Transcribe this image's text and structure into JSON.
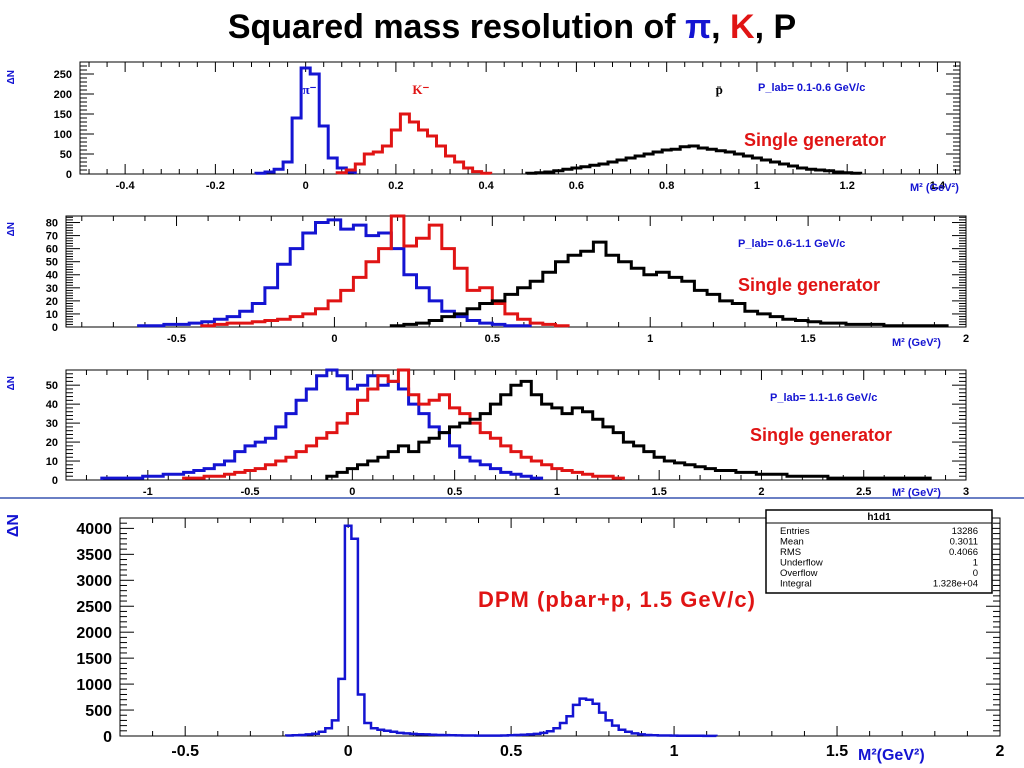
{
  "title": {
    "prefix": "Squared mass resolution of ",
    "pi": "π",
    "sep1": ", ",
    "k": "K",
    "sep2": ", ",
    "p": "P"
  },
  "colors": {
    "pion": "#1414d2",
    "kaon": "#e01414",
    "proton": "#000000",
    "axis": "#000000",
    "label_blue": "#1414d2",
    "label_red": "#e01414",
    "separator": "#6a7fc4"
  },
  "chart_data": [
    {
      "type": "line",
      "style": "histogram",
      "ylabel": "ΔN",
      "xlabel": "M² (GeV²)",
      "xlim": [
        -0.5,
        1.45
      ],
      "ylim": [
        0,
        280
      ],
      "x_ticks": [
        -0.4,
        -0.2,
        0,
        0.2,
        0.4,
        0.6,
        0.8,
        1,
        1.2,
        1.4
      ],
      "x_tick_labels": [
        "-0.4",
        "-0.2",
        "0",
        "0.2",
        "0.4",
        "0.6",
        "0.8",
        "1",
        "1.2",
        "1.4"
      ],
      "y_ticks": [
        0,
        50,
        100,
        150,
        200,
        250
      ],
      "y_tick_labels": [
        "0",
        "50",
        "100",
        "150",
        "200",
        "250"
      ],
      "series_labels": [
        {
          "text": "π⁻",
          "x": -0.08,
          "y": 205,
          "series": "pion"
        },
        {
          "text": "K⁻",
          "x": 0.2,
          "y": 205,
          "series": "kaon"
        },
        {
          "text": "p̄",
          "x": 0.85,
          "y": 205,
          "series": "proton"
        }
      ],
      "annotations": [
        "P_lab= 0.1-0.6 GeV/c",
        "Single generator"
      ],
      "series": [
        {
          "key": "pion",
          "binwidth": 0.02,
          "x": [
            -0.1,
            -0.08,
            -0.06,
            -0.04,
            -0.02,
            0,
            0.02,
            0.04,
            0.06,
            0.08,
            0.1
          ],
          "values": [
            2,
            5,
            12,
            30,
            140,
            265,
            250,
            120,
            40,
            15,
            5
          ]
        },
        {
          "key": "kaon",
          "binwidth": 0.02,
          "x": [
            0.08,
            0.1,
            0.12,
            0.14,
            0.16,
            0.18,
            0.2,
            0.22,
            0.24,
            0.26,
            0.28,
            0.3,
            0.32,
            0.34,
            0.36,
            0.38,
            0.4
          ],
          "values": [
            3,
            10,
            25,
            50,
            55,
            70,
            110,
            150,
            130,
            110,
            95,
            70,
            45,
            30,
            15,
            6,
            2
          ]
        },
        {
          "key": "proton",
          "binwidth": 0.02,
          "x": [
            0.5,
            0.52,
            0.54,
            0.56,
            0.58,
            0.6,
            0.62,
            0.64,
            0.66,
            0.68,
            0.7,
            0.72,
            0.74,
            0.76,
            0.78,
            0.8,
            0.82,
            0.84,
            0.86,
            0.88,
            0.9,
            0.92,
            0.94,
            0.96,
            0.98,
            1,
            1.02,
            1.04,
            1.06,
            1.08,
            1.1,
            1.12,
            1.14,
            1.16,
            1.18,
            1.2,
            1.22
          ],
          "values": [
            2,
            3,
            5,
            8,
            12,
            15,
            18,
            22,
            25,
            30,
            35,
            40,
            45,
            50,
            55,
            60,
            62,
            68,
            70,
            65,
            62,
            58,
            55,
            50,
            45,
            40,
            35,
            30,
            25,
            20,
            15,
            12,
            10,
            8,
            5,
            3,
            2
          ]
        }
      ]
    },
    {
      "type": "line",
      "style": "histogram",
      "ylabel": "ΔN",
      "xlabel": "M² (GeV²)",
      "xlim": [
        -0.85,
        2.0
      ],
      "ylim": [
        0,
        85
      ],
      "x_ticks": [
        -0.5,
        0,
        0.5,
        1,
        1.5,
        2
      ],
      "x_tick_labels": [
        "-0.5",
        "0",
        "0.5",
        "1",
        "1.5",
        "2"
      ],
      "y_ticks": [
        0,
        10,
        20,
        30,
        40,
        50,
        60,
        70,
        80
      ],
      "y_tick_labels": [
        "0",
        "10",
        "20",
        "30",
        "40",
        "50",
        "60",
        "70",
        "80"
      ],
      "series_labels": [],
      "annotations": [
        "P_lab= 0.6-1.1 GeV/c",
        "Single generator"
      ],
      "series": [
        {
          "key": "pion",
          "binwidth": 0.04,
          "x": [
            -0.6,
            -0.56,
            -0.52,
            -0.48,
            -0.44,
            -0.4,
            -0.36,
            -0.32,
            -0.28,
            -0.24,
            -0.2,
            -0.16,
            -0.12,
            -0.08,
            -0.04,
            0,
            0.04,
            0.08,
            0.12,
            0.16,
            0.2,
            0.24,
            0.28,
            0.32,
            0.36,
            0.4,
            0.44,
            0.48,
            0.52,
            0.56,
            0.6
          ],
          "values": [
            1,
            1,
            2,
            2,
            3,
            4,
            6,
            8,
            12,
            18,
            30,
            48,
            60,
            72,
            80,
            82,
            75,
            78,
            70,
            72,
            60,
            40,
            30,
            20,
            12,
            8,
            5,
            3,
            2,
            1,
            1
          ]
        },
        {
          "key": "kaon",
          "binwidth": 0.04,
          "x": [
            -0.4,
            -0.36,
            -0.32,
            -0.28,
            -0.24,
            -0.2,
            -0.16,
            -0.12,
            -0.08,
            -0.04,
            0,
            0.04,
            0.08,
            0.12,
            0.16,
            0.2,
            0.24,
            0.28,
            0.32,
            0.36,
            0.4,
            0.44,
            0.48,
            0.52,
            0.56,
            0.6,
            0.64,
            0.68,
            0.72
          ],
          "values": [
            1,
            2,
            3,
            3,
            4,
            5,
            6,
            8,
            10,
            14,
            20,
            28,
            38,
            50,
            60,
            85,
            62,
            68,
            78,
            60,
            45,
            28,
            30,
            18,
            10,
            6,
            3,
            2,
            1
          ]
        },
        {
          "key": "proton",
          "binwidth": 0.04,
          "x": [
            0.2,
            0.24,
            0.28,
            0.32,
            0.36,
            0.4,
            0.44,
            0.48,
            0.52,
            0.56,
            0.6,
            0.64,
            0.68,
            0.72,
            0.76,
            0.8,
            0.84,
            0.88,
            0.92,
            0.96,
            1.0,
            1.04,
            1.08,
            1.12,
            1.16,
            1.2,
            1.24,
            1.28,
            1.32,
            1.36,
            1.4,
            1.44,
            1.48,
            1.52,
            1.56,
            1.6,
            1.64,
            1.68,
            1.72,
            1.76,
            1.8,
            1.84,
            1.88,
            1.92
          ],
          "values": [
            1,
            2,
            3,
            5,
            8,
            10,
            14,
            18,
            20,
            25,
            30,
            35,
            42,
            50,
            55,
            58,
            65,
            55,
            50,
            45,
            40,
            42,
            38,
            35,
            28,
            25,
            20,
            18,
            12,
            10,
            8,
            6,
            5,
            4,
            3,
            3,
            2,
            2,
            2,
            1,
            1,
            1,
            1,
            1
          ]
        }
      ]
    },
    {
      "type": "line",
      "style": "histogram",
      "ylabel": "ΔN",
      "xlabel": "M² (GeV²)",
      "xlim": [
        -1.4,
        3.0
      ],
      "ylim": [
        0,
        58
      ],
      "x_ticks": [
        -1,
        -0.5,
        0,
        0.5,
        1,
        1.5,
        2,
        2.5,
        3
      ],
      "x_tick_labels": [
        "-1",
        "-0.5",
        "0",
        "0.5",
        "1",
        "1.5",
        "2",
        "2.5",
        "3"
      ],
      "y_ticks": [
        0,
        10,
        20,
        30,
        40,
        50
      ],
      "y_tick_labels": [
        "0",
        "10",
        "20",
        "30",
        "40",
        "50"
      ],
      "series_labels": [],
      "annotations": [
        "P_lab= 1.1-1.6 GeV/c",
        "Single generator"
      ],
      "series": [
        {
          "key": "pion",
          "binwidth": 0.05,
          "x": [
            -1.2,
            -1.15,
            -1.1,
            -1.05,
            -1.0,
            -0.95,
            -0.9,
            -0.85,
            -0.8,
            -0.75,
            -0.7,
            -0.65,
            -0.6,
            -0.55,
            -0.5,
            -0.45,
            -0.4,
            -0.35,
            -0.3,
            -0.25,
            -0.2,
            -0.15,
            -0.1,
            -0.05,
            0,
            0.05,
            0.1,
            0.15,
            0.2,
            0.25,
            0.3,
            0.35,
            0.4,
            0.45,
            0.5,
            0.55,
            0.6,
            0.65,
            0.7,
            0.75,
            0.8,
            0.85,
            0.9
          ],
          "values": [
            1,
            1,
            1,
            1,
            2,
            2,
            3,
            3,
            4,
            5,
            6,
            8,
            10,
            15,
            18,
            20,
            22,
            28,
            35,
            42,
            48,
            55,
            58,
            55,
            48,
            50,
            55,
            50,
            52,
            48,
            40,
            35,
            28,
            25,
            18,
            12,
            10,
            8,
            6,
            4,
            3,
            2,
            1
          ]
        },
        {
          "key": "kaon",
          "binwidth": 0.05,
          "x": [
            -0.8,
            -0.75,
            -0.7,
            -0.65,
            -0.6,
            -0.55,
            -0.5,
            -0.45,
            -0.4,
            -0.35,
            -0.3,
            -0.25,
            -0.2,
            -0.15,
            -0.1,
            -0.05,
            0,
            0.05,
            0.1,
            0.15,
            0.2,
            0.25,
            0.3,
            0.35,
            0.4,
            0.45,
            0.5,
            0.55,
            0.6,
            0.65,
            0.7,
            0.75,
            0.8,
            0.85,
            0.9,
            0.95,
            1.0,
            1.05,
            1.1,
            1.15,
            1.2,
            1.25,
            1.3
          ],
          "values": [
            1,
            1,
            2,
            2,
            3,
            4,
            5,
            6,
            8,
            10,
            12,
            15,
            18,
            22,
            25,
            30,
            35,
            42,
            48,
            55,
            52,
            58,
            45,
            40,
            42,
            45,
            38,
            35,
            30,
            25,
            22,
            18,
            15,
            12,
            10,
            8,
            6,
            5,
            4,
            3,
            2,
            2,
            1
          ]
        },
        {
          "key": "proton",
          "binwidth": 0.05,
          "x": [
            -0.1,
            -0.05,
            0,
            0.05,
            0.1,
            0.15,
            0.2,
            0.25,
            0.3,
            0.35,
            0.4,
            0.45,
            0.5,
            0.55,
            0.6,
            0.65,
            0.7,
            0.75,
            0.8,
            0.85,
            0.9,
            0.95,
            1.0,
            1.05,
            1.1,
            1.15,
            1.2,
            1.25,
            1.3,
            1.35,
            1.4,
            1.45,
            1.5,
            1.55,
            1.6,
            1.65,
            1.7,
            1.75,
            1.8,
            1.85,
            1.9,
            1.95,
            2.0,
            2.05,
            2.1,
            2.15,
            2.2,
            2.25,
            2.3,
            2.35,
            2.4,
            2.45,
            2.5,
            2.55,
            2.6,
            2.65,
            2.7,
            2.75,
            2.8
          ],
          "values": [
            2,
            4,
            6,
            8,
            10,
            12,
            15,
            18,
            15,
            20,
            22,
            25,
            28,
            30,
            32,
            35,
            40,
            45,
            50,
            52,
            45,
            40,
            38,
            35,
            38,
            36,
            32,
            28,
            25,
            20,
            18,
            15,
            12,
            10,
            9,
            8,
            7,
            6,
            5,
            5,
            4,
            4,
            3,
            3,
            3,
            2,
            2,
            2,
            2,
            1,
            1,
            1,
            1,
            1,
            1,
            1,
            1,
            1,
            1
          ]
        }
      ]
    },
    {
      "type": "line",
      "style": "histogram",
      "ylabel": "ΔN",
      "xlabel": "M²(GeV²)",
      "xlim": [
        -0.7,
        2.0
      ],
      "ylim": [
        0,
        4200
      ],
      "x_ticks": [
        -0.5,
        0,
        0.5,
        1,
        1.5,
        2
      ],
      "x_tick_labels": [
        "-0.5",
        "0",
        "0.5",
        "1",
        "1.5",
        "2"
      ],
      "y_ticks": [
        0,
        500,
        1000,
        1500,
        2000,
        2500,
        3000,
        3500,
        4000
      ],
      "y_tick_labels": [
        "0",
        "500",
        "1000",
        "1500",
        "2000",
        "2500",
        "3000",
        "3500",
        "4000"
      ],
      "series_labels": [],
      "annotations": [
        "DPM (pbar+p,   1.5 GeV/c)"
      ],
      "stats_box": {
        "name": "h1d1",
        "rows": [
          {
            "label": "Entries",
            "value": "13286"
          },
          {
            "label": "Mean",
            "value": "0.3011"
          },
          {
            "label": "RMS",
            "value": "0.4066"
          },
          {
            "label": "Underflow",
            "value": "1"
          },
          {
            "label": "Overflow",
            "value": "0"
          },
          {
            "label": "Integral",
            "value": "1.328e+04"
          }
        ]
      },
      "series": [
        {
          "key": "pion",
          "binwidth": 0.02,
          "x": [
            -0.18,
            -0.16,
            -0.14,
            -0.12,
            -0.1,
            -0.08,
            -0.06,
            -0.04,
            -0.02,
            0,
            0.02,
            0.04,
            0.06,
            0.08,
            0.1,
            0.12,
            0.14,
            0.16,
            0.18,
            0.2,
            0.22,
            0.24,
            0.26,
            0.28,
            0.3,
            0.32,
            0.34,
            0.36,
            0.38,
            0.4,
            0.42,
            0.44,
            0.46,
            0.48,
            0.5,
            0.52,
            0.54,
            0.56,
            0.58,
            0.6,
            0.62,
            0.64,
            0.66,
            0.68,
            0.7,
            0.72,
            0.74,
            0.76,
            0.78,
            0.8,
            0.82,
            0.84,
            0.86,
            0.88,
            0.9,
            0.92,
            0.94,
            0.96,
            0.98,
            1.0,
            1.02,
            1.04,
            1.06,
            1.08,
            1.1,
            1.12
          ],
          "values": [
            10,
            15,
            20,
            30,
            45,
            80,
            150,
            300,
            1100,
            4050,
            3800,
            800,
            250,
            150,
            120,
            100,
            80,
            60,
            50,
            40,
            35,
            30,
            25,
            20,
            18,
            15,
            12,
            10,
            10,
            8,
            8,
            8,
            8,
            10,
            15,
            20,
            25,
            30,
            40,
            60,
            90,
            150,
            250,
            380,
            600,
            720,
            700,
            620,
            450,
            300,
            200,
            120,
            80,
            50,
            30,
            20,
            15,
            10,
            10,
            8,
            6,
            5,
            4,
            3,
            2,
            1
          ]
        }
      ]
    }
  ]
}
